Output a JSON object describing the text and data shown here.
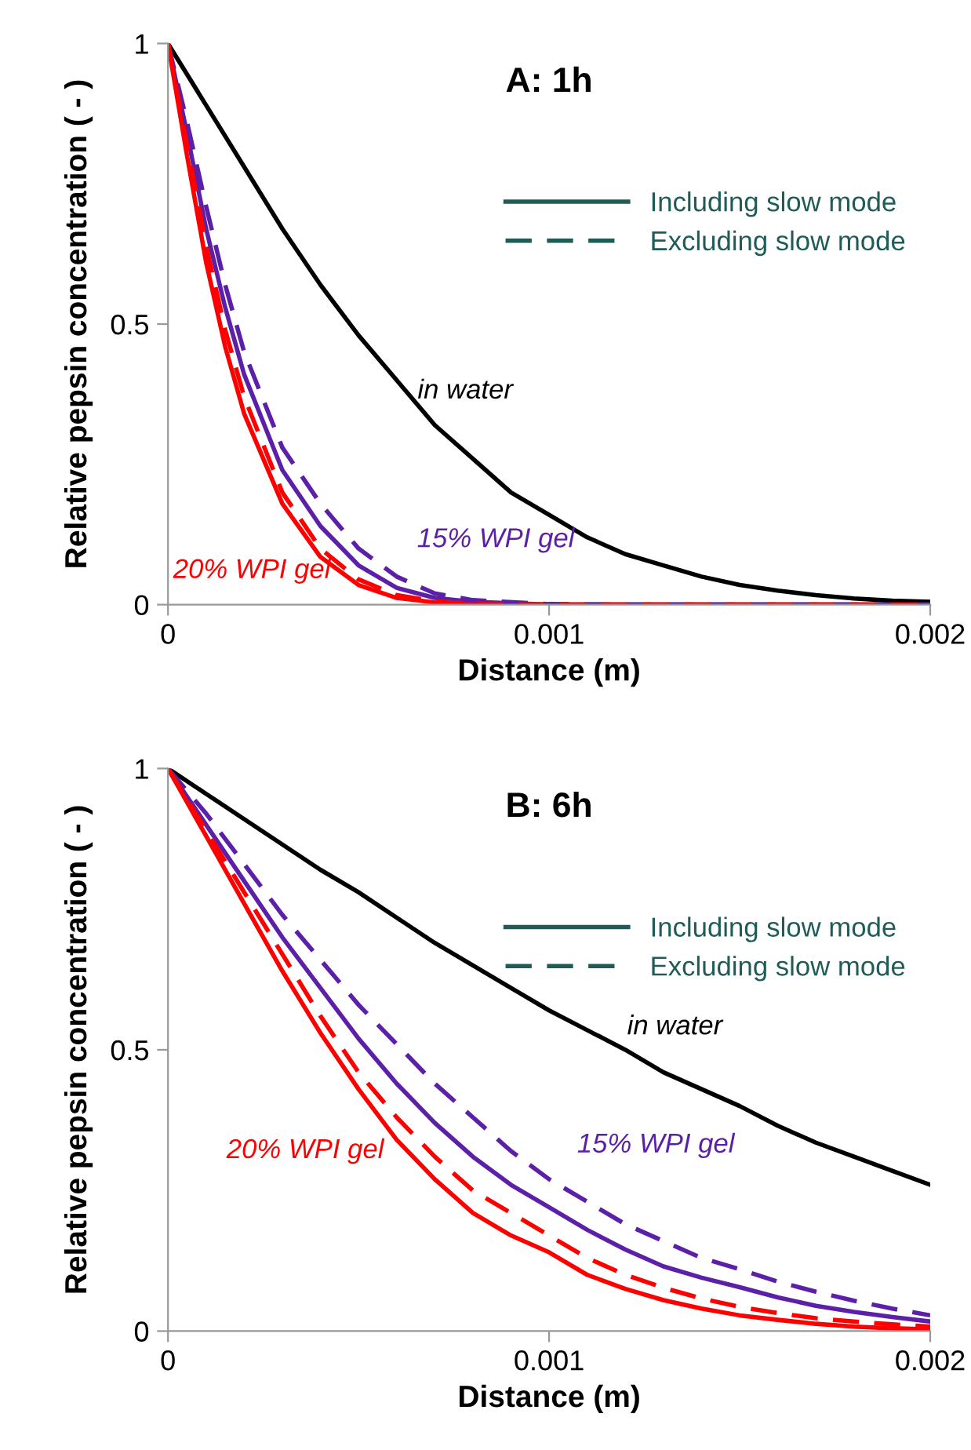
{
  "chart_data": [
    {
      "type": "line",
      "title": "A: 1h",
      "xlabel": "Distance (m)",
      "ylabel": "Relative pepsin concentration ( - )",
      "xlim": [
        0,
        0.002
      ],
      "xticks": [
        0,
        0.001,
        0.002
      ],
      "ylim": [
        0,
        1
      ],
      "yticks": [
        0,
        0.5,
        1
      ],
      "grid": false,
      "marker": "none",
      "annotations": [
        "in water",
        "15% WPI gel",
        "20% WPI gel",
        "Including slow mode",
        "Excluding slow mode"
      ],
      "series": [
        {
          "color": "#000000",
          "line_style": "solid",
          "x": [
            0,
            0.0001,
            0.0002,
            0.0003,
            0.0004,
            0.0005,
            0.0006,
            0.0007,
            0.0008,
            0.0009,
            0.001,
            0.0011,
            0.0012,
            0.0013,
            0.0014,
            0.0015,
            0.0016,
            0.0017,
            0.0018,
            0.0019,
            0.002
          ],
          "values": [
            1,
            0.89,
            0.78,
            0.67,
            0.57,
            0.48,
            0.4,
            0.32,
            0.26,
            0.2,
            0.16,
            0.12,
            0.09,
            0.07,
            0.05,
            0.035,
            0.025,
            0.017,
            0.011,
            0.007,
            0.005
          ]
        },
        {
          "color": "#5b1fa8",
          "line_style": "solid",
          "x": [
            0,
            5e-05,
            0.0001,
            0.00015,
            0.0002,
            0.0003,
            0.0004,
            0.0005,
            0.0006,
            0.0007,
            0.0008,
            0.001,
            0.0012,
            0.0015,
            0.002
          ],
          "values": [
            1,
            0.84,
            0.67,
            0.53,
            0.41,
            0.24,
            0.14,
            0.07,
            0.03,
            0.012,
            0.005,
            0,
            0,
            0,
            0
          ]
        },
        {
          "color": "#ff0000",
          "line_style": "solid",
          "x": [
            0,
            5e-05,
            0.0001,
            0.00015,
            0.0002,
            0.0003,
            0.0004,
            0.0005,
            0.0006,
            0.0007,
            0.0008,
            0.001,
            0.0012,
            0.0015,
            0.002
          ],
          "values": [
            1,
            0.8,
            0.61,
            0.46,
            0.34,
            0.18,
            0.085,
            0.035,
            0.012,
            0.004,
            0.001,
            0,
            0,
            0,
            0
          ]
        },
        {
          "color": "#5b1fa8",
          "line_style": "dashed",
          "x": [
            0,
            5e-05,
            0.0001,
            0.00015,
            0.0002,
            0.0003,
            0.0004,
            0.0005,
            0.0006,
            0.0007,
            0.0008,
            0.001,
            0.0012,
            0.0015,
            0.002
          ],
          "values": [
            1,
            0.86,
            0.71,
            0.57,
            0.45,
            0.28,
            0.18,
            0.1,
            0.05,
            0.02,
            0.008,
            0.001,
            0,
            0,
            0
          ]
        },
        {
          "color": "#ff0000",
          "line_style": "dashed",
          "x": [
            0,
            5e-05,
            0.0001,
            0.00015,
            0.0002,
            0.0003,
            0.0004,
            0.0005,
            0.0006,
            0.0007,
            0.0008,
            0.001,
            0.0012,
            0.0015,
            0.002
          ],
          "values": [
            1,
            0.82,
            0.64,
            0.49,
            0.37,
            0.2,
            0.1,
            0.045,
            0.017,
            0.006,
            0.002,
            0,
            0,
            0,
            0
          ]
        }
      ]
    },
    {
      "type": "line",
      "title": "B: 6h",
      "xlabel": "Distance (m)",
      "ylabel": "Relative pepsin concentration ( - )",
      "xlim": [
        0,
        0.002
      ],
      "xticks": [
        0,
        0.001,
        0.002
      ],
      "ylim": [
        0,
        1
      ],
      "yticks": [
        0,
        0.5,
        1
      ],
      "grid": false,
      "marker": "none",
      "annotations": [
        "in water",
        "15% WPI gel",
        "20% WPI gel",
        "Including slow mode",
        "Excluding slow mode"
      ],
      "series": [
        {
          "color": "#000000",
          "line_style": "solid",
          "x": [
            0,
            0.0001,
            0.0002,
            0.0003,
            0.0004,
            0.0005,
            0.0006,
            0.0007,
            0.0008,
            0.0009,
            0.001,
            0.0011,
            0.0012,
            0.0013,
            0.0014,
            0.0015,
            0.0016,
            0.0017,
            0.0018,
            0.0019,
            0.002
          ],
          "values": [
            1,
            0.955,
            0.91,
            0.865,
            0.82,
            0.78,
            0.735,
            0.69,
            0.65,
            0.61,
            0.57,
            0.535,
            0.5,
            0.46,
            0.43,
            0.4,
            0.365,
            0.335,
            0.31,
            0.285,
            0.26
          ]
        },
        {
          "color": "#5b1fa8",
          "line_style": "solid",
          "x": [
            0,
            0.0001,
            0.0002,
            0.0003,
            0.0004,
            0.0005,
            0.0006,
            0.0007,
            0.0008,
            0.0009,
            0.001,
            0.0011,
            0.0012,
            0.0013,
            0.0014,
            0.0015,
            0.0016,
            0.0017,
            0.0018,
            0.0019,
            0.002
          ],
          "values": [
            1,
            0.9,
            0.8,
            0.7,
            0.61,
            0.52,
            0.44,
            0.37,
            0.31,
            0.26,
            0.22,
            0.18,
            0.145,
            0.115,
            0.095,
            0.078,
            0.06,
            0.045,
            0.034,
            0.025,
            0.017
          ]
        },
        {
          "color": "#ff0000",
          "line_style": "solid",
          "x": [
            0,
            0.0001,
            0.0002,
            0.0003,
            0.0004,
            0.0005,
            0.0006,
            0.0007,
            0.0008,
            0.0009,
            0.001,
            0.0011,
            0.0012,
            0.0013,
            0.0014,
            0.0015,
            0.0016,
            0.0017,
            0.0018,
            0.0019,
            0.002
          ],
          "values": [
            1,
            0.88,
            0.76,
            0.64,
            0.53,
            0.43,
            0.34,
            0.27,
            0.21,
            0.17,
            0.14,
            0.1,
            0.075,
            0.055,
            0.04,
            0.028,
            0.02,
            0.013,
            0.008,
            0.005,
            0.003
          ]
        },
        {
          "color": "#5b1fa8",
          "line_style": "dashed",
          "x": [
            0,
            0.0001,
            0.0002,
            0.0003,
            0.0004,
            0.0005,
            0.0006,
            0.0007,
            0.0008,
            0.0009,
            0.001,
            0.0011,
            0.0012,
            0.0013,
            0.0014,
            0.0015,
            0.0016,
            0.0017,
            0.0018,
            0.0019,
            0.002
          ],
          "values": [
            1,
            0.92,
            0.83,
            0.74,
            0.66,
            0.58,
            0.51,
            0.44,
            0.38,
            0.32,
            0.27,
            0.23,
            0.19,
            0.16,
            0.13,
            0.11,
            0.088,
            0.07,
            0.054,
            0.04,
            0.028
          ]
        },
        {
          "color": "#ff0000",
          "line_style": "dashed",
          "x": [
            0,
            0.0001,
            0.0002,
            0.0003,
            0.0004,
            0.0005,
            0.0006,
            0.0007,
            0.0008,
            0.0009,
            0.001,
            0.0011,
            0.0012,
            0.0013,
            0.0014,
            0.0015,
            0.0016,
            0.0017,
            0.0018,
            0.0019,
            0.002
          ],
          "values": [
            1,
            0.89,
            0.78,
            0.67,
            0.56,
            0.46,
            0.38,
            0.31,
            0.25,
            0.21,
            0.17,
            0.13,
            0.1,
            0.077,
            0.058,
            0.043,
            0.032,
            0.023,
            0.017,
            0.012,
            0.008
          ]
        }
      ]
    }
  ]
}
